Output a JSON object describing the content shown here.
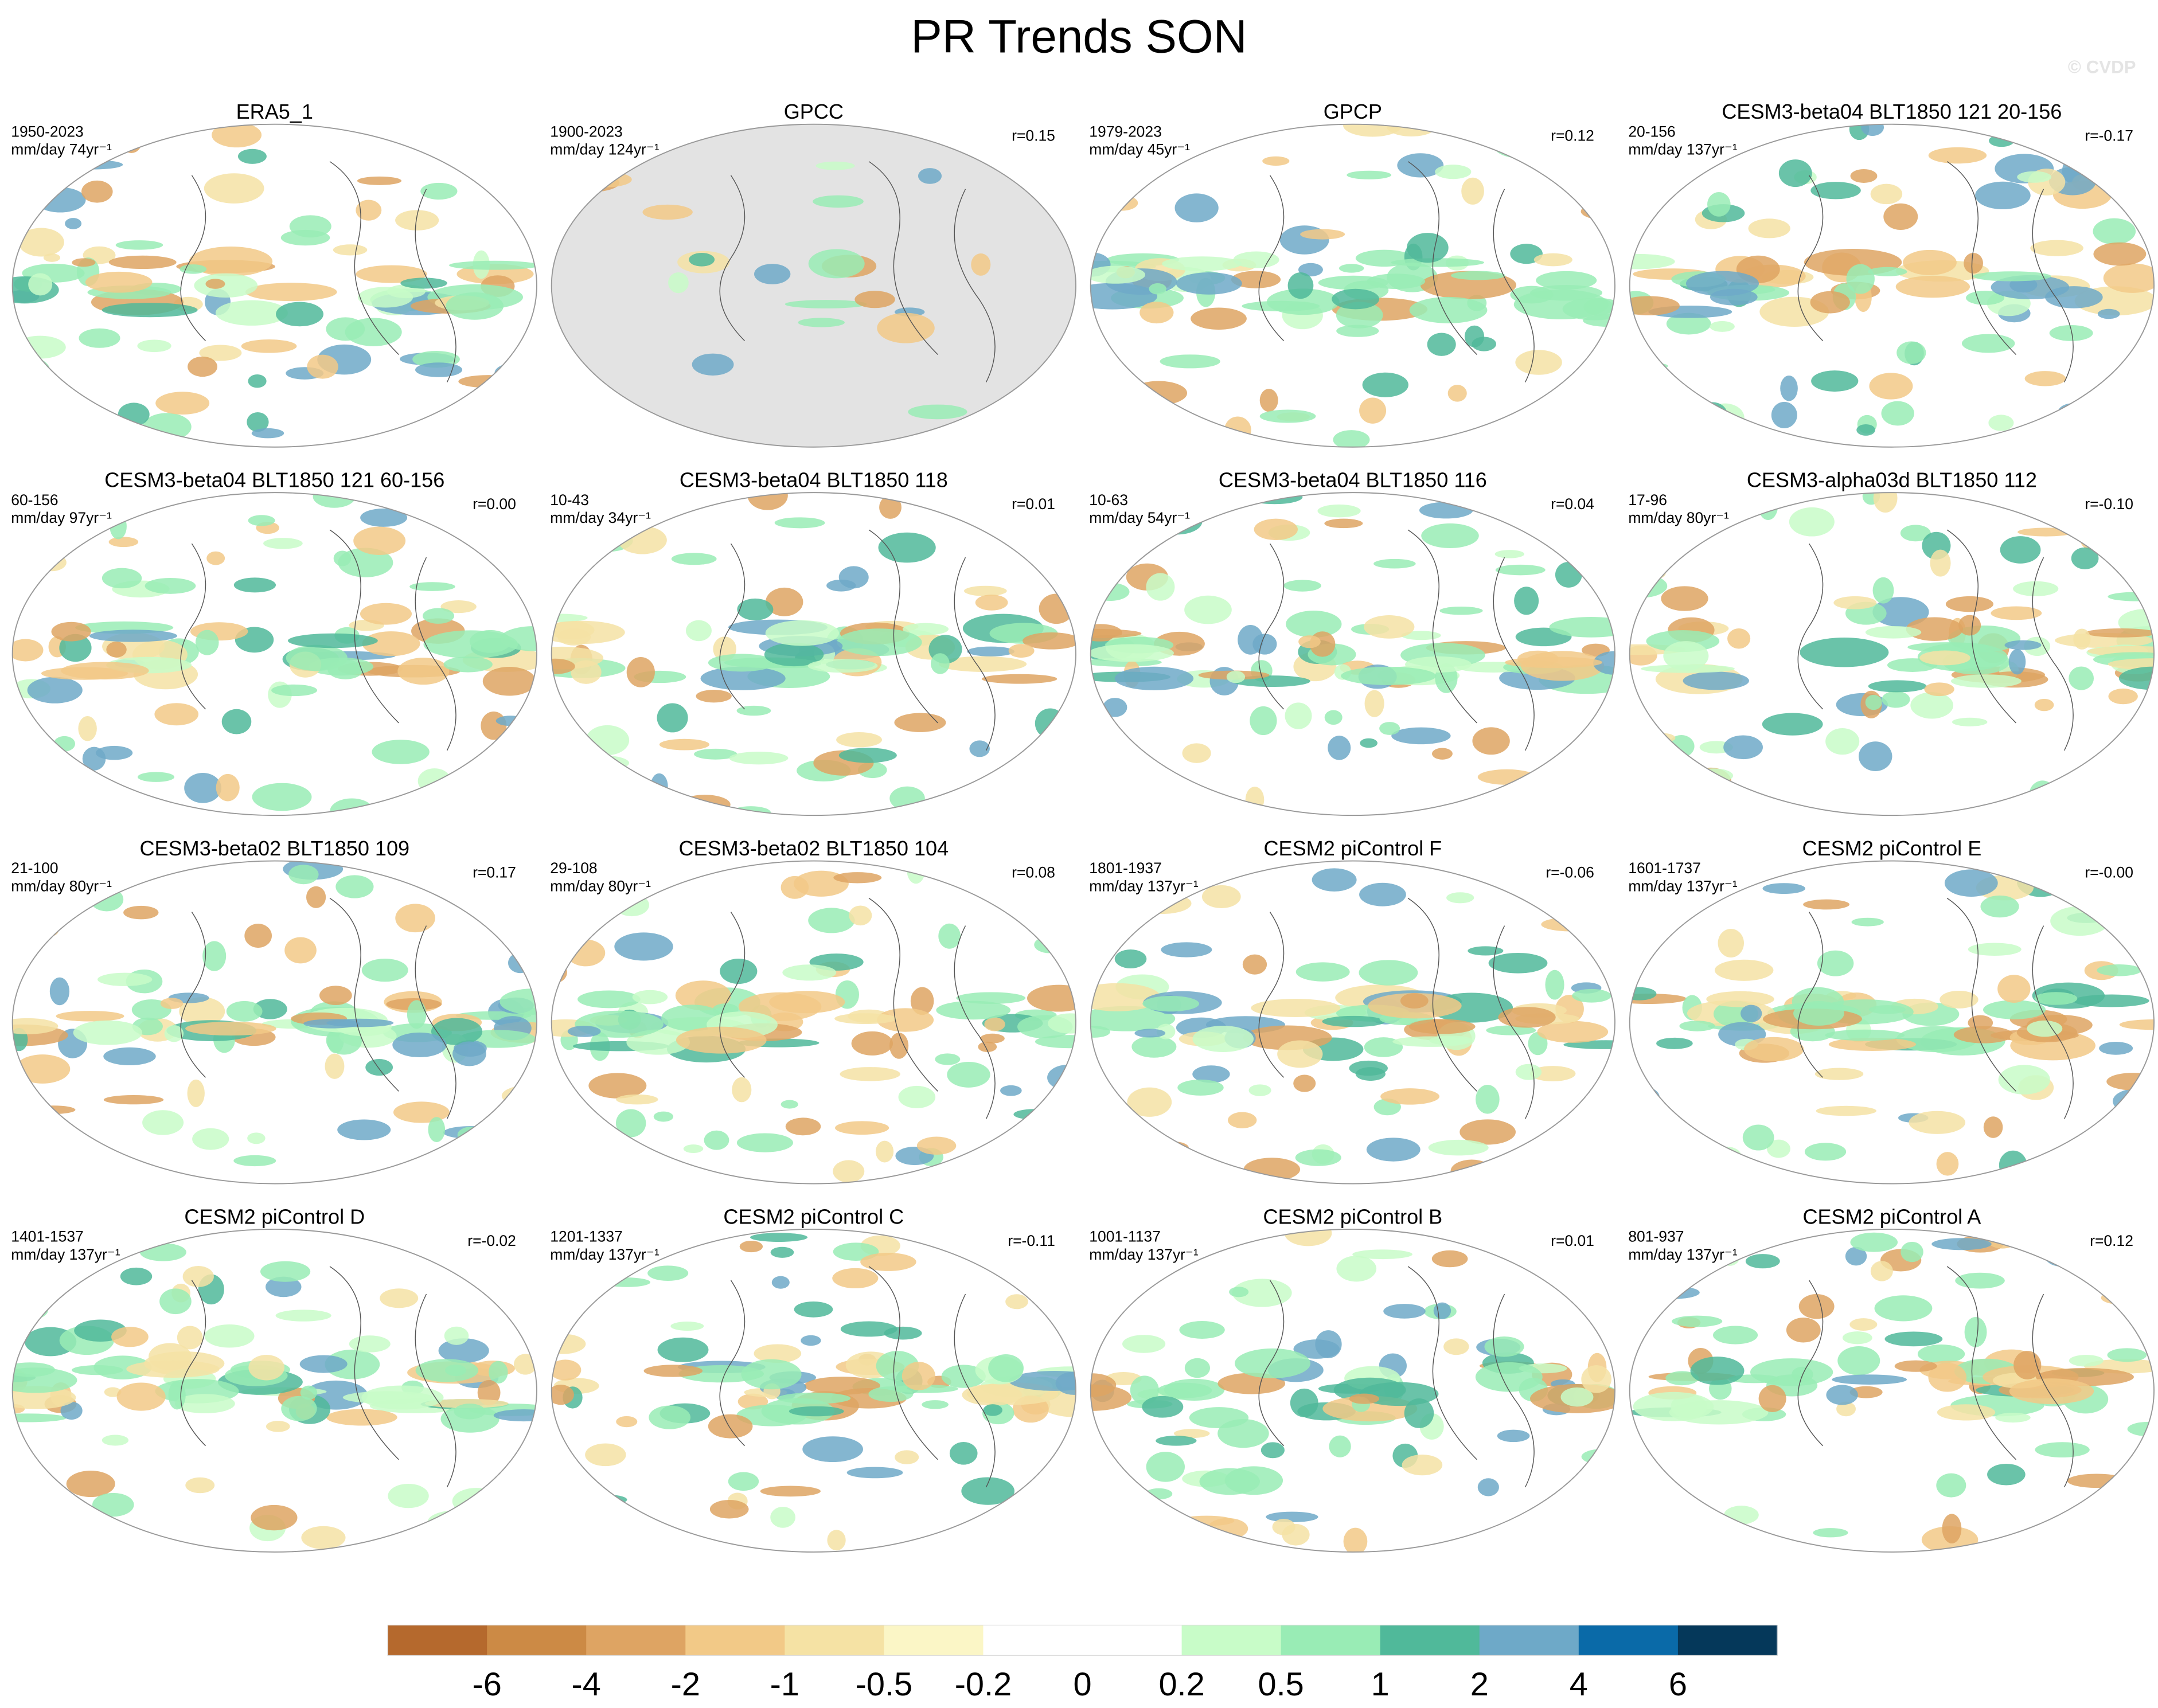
{
  "title": "PR Trends SON",
  "watermark": "© CVDP",
  "panels": [
    {
      "title": "ERA5_1",
      "period": "1950-2023",
      "units": "mm/day 74yr⁻¹"
    },
    {
      "title": "GPCC",
      "period": "1900-2023",
      "units": "mm/day 124yr⁻¹",
      "r": "r=0.15"
    },
    {
      "title": "GPCP",
      "period": "1979-2023",
      "units": "mm/day 45yr⁻¹",
      "r": "r=0.12"
    },
    {
      "title": "CESM3-beta04 BLT1850 121 20-156",
      "period": "20-156",
      "units": "mm/day 137yr⁻¹",
      "r": "r=-0.17"
    },
    {
      "title": "CESM3-beta04 BLT1850 121 60-156",
      "period": "60-156",
      "units": "mm/day 97yr⁻¹",
      "r": "r=0.00"
    },
    {
      "title": "CESM3-beta04 BLT1850 118",
      "period": "10-43",
      "units": "mm/day 34yr⁻¹",
      "r": "r=0.01"
    },
    {
      "title": "CESM3-beta04 BLT1850 116",
      "period": "10-63",
      "units": "mm/day 54yr⁻¹",
      "r": "r=0.04"
    },
    {
      "title": "CESM3-alpha03d BLT1850 112",
      "period": "17-96",
      "units": "mm/day 80yr⁻¹",
      "r": "r=-0.10"
    },
    {
      "title": "CESM3-beta02 BLT1850 109",
      "period": "21-100",
      "units": "mm/day 80yr⁻¹",
      "r": "r=0.17"
    },
    {
      "title": "CESM3-beta02 BLT1850 104",
      "period": "29-108",
      "units": "mm/day 80yr⁻¹",
      "r": "r=0.08"
    },
    {
      "title": "CESM2 piControl F",
      "period": "1801-1937",
      "units": "mm/day 137yr⁻¹",
      "r": "r=-0.06"
    },
    {
      "title": "CESM2 piControl E",
      "period": "1601-1737",
      "units": "mm/day 137yr⁻¹",
      "r": "r=-0.00"
    },
    {
      "title": "CESM2 piControl D",
      "period": "1401-1537",
      "units": "mm/day 137yr⁻¹",
      "r": "r=-0.02"
    },
    {
      "title": "CESM2 piControl C",
      "period": "1201-1337",
      "units": "mm/day 137yr⁻¹",
      "r": "r=-0.11"
    },
    {
      "title": "CESM2 piControl B",
      "period": "1001-1137",
      "units": "mm/day 137yr⁻¹",
      "r": "r=0.01"
    },
    {
      "title": "CESM2 piControl A",
      "period": "801-937",
      "units": "mm/day 137yr⁻¹",
      "r": "r=0.12"
    }
  ],
  "colorbar": {
    "levels": [
      -6,
      -4,
      -2,
      -1,
      -0.5,
      -0.2,
      0,
      0.2,
      0.5,
      1,
      2,
      4,
      6
    ],
    "colors": [
      "#b5692d",
      "#cc8a45",
      "#dea463",
      "#f2c987",
      "#f5e2a4",
      "#fbf6c6",
      "#ffffff",
      "#ffffff",
      "#c8fcc8",
      "#99ecb5",
      "#50b99a",
      "#6ea9c8",
      "#0a6aa8",
      "#05385a"
    ]
  }
}
